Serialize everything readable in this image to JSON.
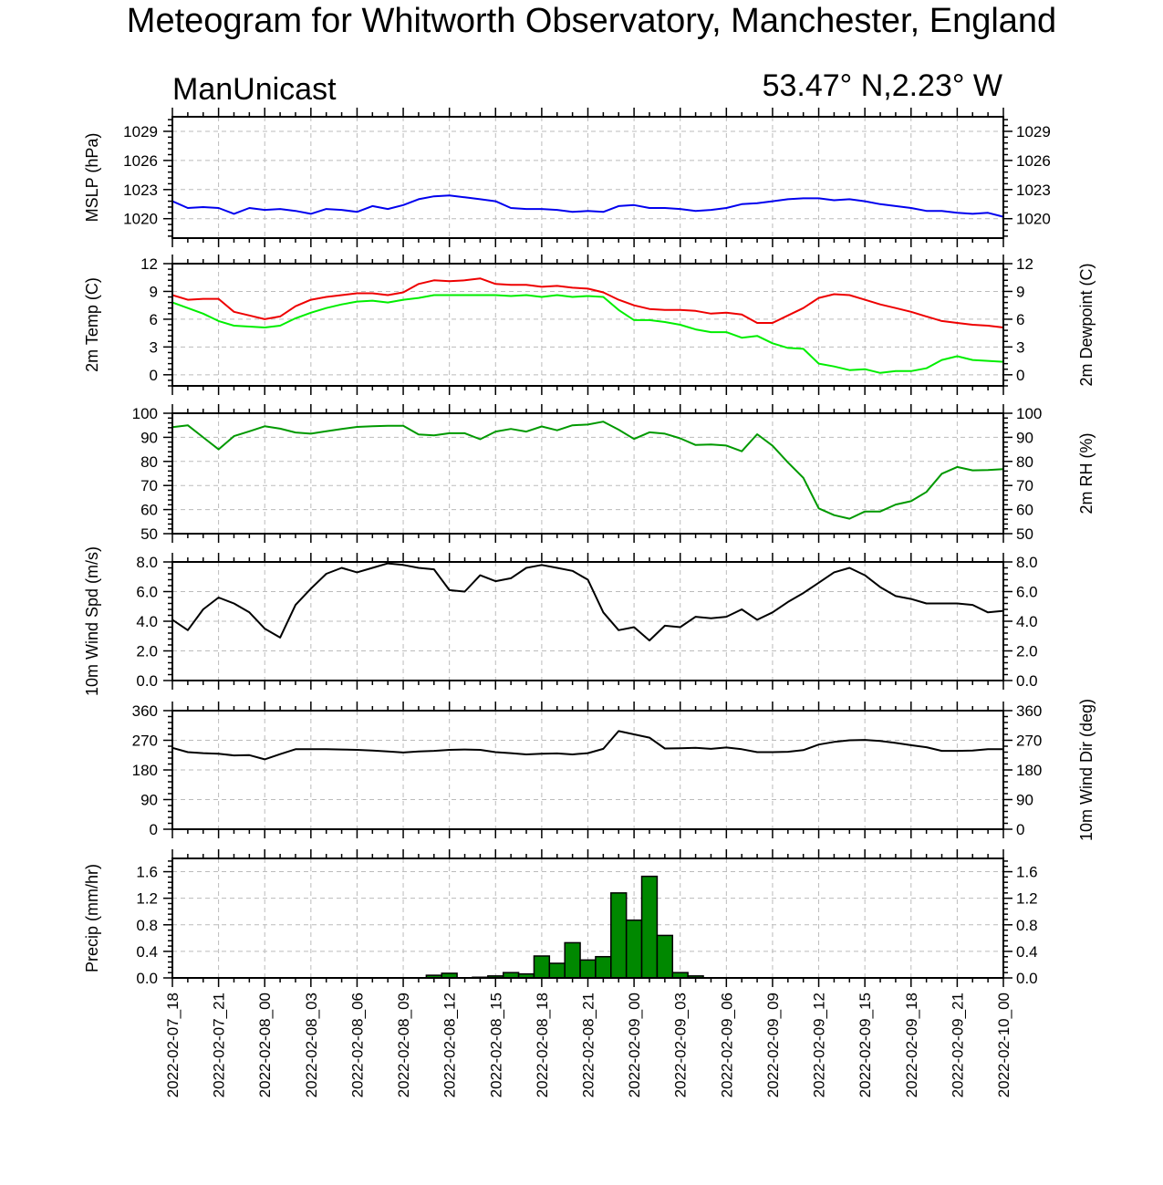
{
  "title": "Meteogram for Whitworth Observatory, Manchester, England",
  "left_string": "ManUnicast",
  "right_string": "53.47° N,2.23° W",
  "x_tick_labels": [
    "2022-02-07_18",
    "2022-02-07_21",
    "2022-02-08_00",
    "2022-02-08_03",
    "2022-02-08_06",
    "2022-02-08_09",
    "2022-02-08_12",
    "2022-02-08_15",
    "2022-02-08_18",
    "2022-02-08_21",
    "2022-02-09_00",
    "2022-02-09_03",
    "2022-02-09_06",
    "2022-02-09_09",
    "2022-02-09_12",
    "2022-02-09_15",
    "2022-02-09_18",
    "2022-02-09_21",
    "2022-02-10_00"
  ],
  "colors": {
    "mslp": "#0000ee",
    "temp": "#ee0000",
    "dewpoint": "#00ee00",
    "rh": "#009900",
    "wind": "#000000",
    "precip_fill": "#008800",
    "grid": "#bbbbbb"
  },
  "chart_data": [
    {
      "type": "line",
      "ylabel": "MSLP (hPa)",
      "ylim": [
        1018,
        1030.5
      ],
      "yticks": [
        1020,
        1023,
        1026,
        1029
      ],
      "ytick_labels": [
        "1020",
        "1023",
        "1026",
        "1029"
      ],
      "right_ytick_labels": [
        "1020",
        "1023",
        "1026",
        "1029"
      ],
      "grid": true,
      "x_start": "2022-02-07_18",
      "x_step_hours": 1,
      "series": [
        {
          "color_key": "mslp",
          "values": [
            1021.8,
            1021.1,
            1021.2,
            1021.1,
            1020.5,
            1021.1,
            1020.9,
            1021.0,
            1020.8,
            1020.5,
            1021.0,
            1020.9,
            1020.7,
            1021.3,
            1021.0,
            1021.4,
            1022.0,
            1022.3,
            1022.4,
            1022.2,
            1022.0,
            1021.8,
            1021.1,
            1021.0,
            1021.0,
            1020.9,
            1020.7,
            1020.8,
            1020.7,
            1021.3,
            1021.4,
            1021.1,
            1021.1,
            1021.0,
            1020.8,
            1020.9,
            1021.1,
            1021.5,
            1021.6,
            1021.8,
            1022.0,
            1022.1,
            1022.1,
            1021.9,
            1022.0,
            1021.8,
            1021.5,
            1021.3,
            1021.1,
            1020.8,
            1020.8,
            1020.6,
            1020.5,
            1020.6,
            1020.2
          ]
        }
      ]
    },
    {
      "type": "line",
      "ylabel": "2m Temp (C)",
      "right_ylabel": "2m Dewpoint (C)",
      "ylim": [
        -1.2,
        12
      ],
      "yticks": [
        0,
        3,
        6,
        9,
        12
      ],
      "ytick_labels": [
        "0",
        "3",
        "6",
        "9",
        "12"
      ],
      "right_ytick_labels": [
        "0",
        "3",
        "6",
        "9",
        "12"
      ],
      "grid": true,
      "x_start": "2022-02-07_18",
      "x_step_hours": 1,
      "series": [
        {
          "color_key": "temp",
          "values": [
            8.6,
            8.1,
            8.2,
            8.2,
            6.8,
            6.4,
            6.0,
            6.3,
            7.4,
            8.1,
            8.4,
            8.6,
            8.8,
            8.8,
            8.6,
            8.9,
            9.8,
            10.2,
            10.1,
            10.2,
            10.4,
            9.8,
            9.7,
            9.7,
            9.5,
            9.6,
            9.4,
            9.3,
            8.9,
            8.1,
            7.5,
            7.1,
            7.0,
            7.0,
            6.9,
            6.6,
            6.7,
            6.5,
            5.6,
            5.6,
            6.4,
            7.2,
            8.3,
            8.7,
            8.6,
            8.1,
            7.6,
            7.2,
            6.8,
            6.3,
            5.8,
            5.6,
            5.4,
            5.3,
            5.1
          ]
        },
        {
          "color_key": "dewpoint",
          "values": [
            7.8,
            7.2,
            6.6,
            5.8,
            5.3,
            5.2,
            5.1,
            5.3,
            6.1,
            6.7,
            7.2,
            7.6,
            7.9,
            8.0,
            7.8,
            8.1,
            8.3,
            8.6,
            8.6,
            8.6,
            8.6,
            8.6,
            8.5,
            8.6,
            8.4,
            8.6,
            8.4,
            8.5,
            8.4,
            7.0,
            5.9,
            5.9,
            5.7,
            5.4,
            4.9,
            4.6,
            4.6,
            4.0,
            4.2,
            3.4,
            2.9,
            2.8,
            1.2,
            0.9,
            0.5,
            0.6,
            0.2,
            0.4,
            0.4,
            0.7,
            1.6,
            2.0,
            1.6,
            1.5,
            1.4
          ]
        }
      ]
    },
    {
      "type": "line",
      "right_ylabel": "2m RH (%)",
      "ylim": [
        50,
        100
      ],
      "yticks": [
        50,
        60,
        70,
        80,
        90,
        100
      ],
      "ytick_labels": [
        "50",
        "60",
        "70",
        "80",
        "90",
        "100"
      ],
      "right_ytick_labels": [
        "50",
        "60",
        "70",
        "80",
        "90",
        "100"
      ],
      "grid": true,
      "x_start": "2022-02-07_18",
      "x_step_hours": 1,
      "series": [
        {
          "color_key": "rh",
          "values": [
            94.2,
            95.0,
            90.0,
            85.0,
            90.5,
            92.5,
            94.6,
            93.6,
            92.0,
            91.5,
            92.5,
            93.5,
            94.3,
            94.6,
            94.8,
            94.8,
            91.2,
            90.8,
            91.7,
            91.7,
            89.2,
            92.4,
            93.5,
            92.4,
            94.5,
            92.9,
            95.0,
            95.3,
            96.5,
            93.2,
            89.3,
            92.1,
            91.5,
            89.6,
            86.8,
            87.0,
            86.6,
            84.2,
            91.3,
            86.5,
            79.6,
            73.2,
            60.5,
            57.7,
            56.2,
            59.2,
            59.2,
            62.1,
            63.5,
            67.3,
            74.9,
            77.7,
            76.3,
            76.4,
            76.8
          ]
        }
      ]
    },
    {
      "type": "line",
      "ylabel": "10m Wind Spd (m/s)",
      "ylim": [
        0,
        8.0
      ],
      "yticks": [
        0,
        2,
        4,
        6,
        8
      ],
      "ytick_labels": [
        "0.0",
        "2.0",
        "4.0",
        "6.0",
        "8.0"
      ],
      "right_ytick_labels": [
        "0.0",
        "2.0",
        "4.0",
        "6.0",
        "8.0"
      ],
      "grid": true,
      "x_start": "2022-02-07_18",
      "x_step_hours": 1,
      "series": [
        {
          "color_key": "wind",
          "values": [
            4.1,
            3.4,
            4.8,
            5.6,
            5.2,
            4.6,
            3.5,
            2.9,
            5.1,
            6.2,
            7.2,
            7.6,
            7.3,
            7.6,
            7.9,
            7.8,
            7.6,
            7.5,
            6.1,
            6.0,
            7.1,
            6.7,
            6.9,
            7.6,
            7.8,
            7.6,
            7.4,
            6.8,
            4.6,
            3.4,
            3.6,
            2.7,
            3.7,
            3.6,
            4.3,
            4.2,
            4.3,
            4.8,
            4.1,
            4.6,
            5.3,
            5.9,
            6.6,
            7.3,
            7.6,
            7.1,
            6.3,
            5.7,
            5.5,
            5.2,
            5.2,
            5.2,
            5.1,
            4.6,
            4.7
          ]
        }
      ]
    },
    {
      "type": "line",
      "right_ylabel": "10m Wind Dir (deg)",
      "ylim": [
        0,
        360
      ],
      "yticks": [
        0,
        90,
        180,
        270,
        360
      ],
      "ytick_labels": [
        "0",
        "90",
        "180",
        "270",
        "360"
      ],
      "right_ytick_labels": [
        "0",
        "90",
        "180",
        "270",
        "360"
      ],
      "grid": true,
      "x_start": "2022-02-07_18",
      "x_step_hours": 1,
      "series": [
        {
          "color_key": "wind",
          "values": [
            247,
            234,
            231,
            229,
            224,
            225,
            212,
            228,
            243,
            243,
            243,
            242,
            241,
            239,
            236,
            233,
            236,
            238,
            241,
            242,
            241,
            234,
            231,
            227,
            229,
            230,
            227,
            231,
            244,
            298,
            288,
            278,
            245,
            246,
            247,
            244,
            248,
            243,
            234,
            234,
            235,
            240,
            257,
            265,
            270,
            271,
            268,
            262,
            255,
            249,
            238,
            238,
            239,
            243,
            243
          ]
        }
      ]
    },
    {
      "type": "bar",
      "ylabel": "Precip (mm/hr)",
      "ylim": [
        0,
        1.8
      ],
      "yticks": [
        0,
        0.4,
        0.8,
        1.2,
        1.6
      ],
      "ytick_labels": [
        "0.0",
        "0.4",
        "0.8",
        "1.2",
        "1.6"
      ],
      "right_ytick_labels": [
        "0.0",
        "0.4",
        "0.8",
        "1.2",
        "1.6"
      ],
      "grid": true,
      "x_start": "2022-02-07_18",
      "x_step_hours": 1,
      "series": [
        {
          "color_key": "precip_fill",
          "values": [
            0,
            0,
            0,
            0,
            0,
            0,
            0,
            0,
            0,
            0,
            0,
            0,
            0,
            0,
            0,
            0,
            0,
            0.04,
            0.07,
            0,
            0.01,
            0.03,
            0.08,
            0.06,
            0.33,
            0.22,
            0.53,
            0.27,
            0.32,
            1.28,
            0.87,
            1.53,
            0.64,
            0.08,
            0.03,
            0,
            0,
            0,
            0,
            0,
            0,
            0,
            0,
            0,
            0,
            0,
            0,
            0,
            0,
            0,
            0,
            0,
            0,
            0,
            0
          ]
        }
      ]
    }
  ]
}
